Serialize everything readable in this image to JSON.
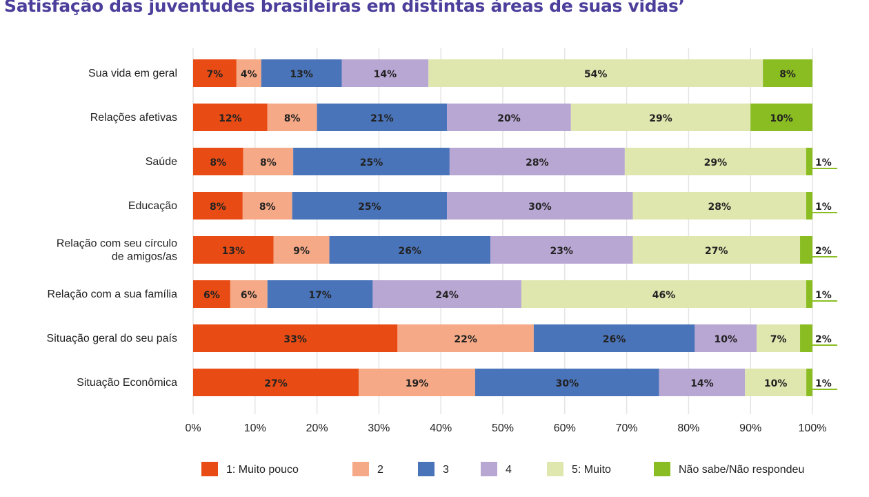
{
  "chart_data": {
    "type": "bar",
    "orientation": "horizontal",
    "stacked": true,
    "title": "Satisfação das juventudes brasileiras em distintas áreas de suas vidas’",
    "categories": [
      "Sua vida em geral",
      "Relações afetivas",
      "Saúde",
      "Educação",
      "Relação com seu círculo de amigos/as",
      "Relação com a sua família",
      "Situação geral do seu país",
      "Situação Econômica"
    ],
    "series": [
      {
        "name": "1: Muito pouco",
        "color": "#e84c14",
        "values": [
          7,
          12,
          8,
          8,
          13,
          6,
          33,
          27
        ]
      },
      {
        "name": "2",
        "color": "#f5a986",
        "values": [
          4,
          8,
          8,
          8,
          9,
          6,
          22,
          19
        ]
      },
      {
        "name": "3",
        "color": "#4a74b9",
        "values": [
          13,
          21,
          25,
          25,
          26,
          17,
          26,
          30
        ]
      },
      {
        "name": "4",
        "color": "#b8a6d3",
        "values": [
          14,
          20,
          28,
          30,
          23,
          24,
          10,
          14
        ]
      },
      {
        "name": "5: Muito",
        "color": "#dfe6ae",
        "values": [
          54,
          29,
          29,
          28,
          27,
          46,
          7,
          10
        ]
      },
      {
        "name": "Não sabe/Não respondeu",
        "color": "#8abd22",
        "values": [
          8,
          10,
          1,
          1,
          2,
          1,
          2,
          1
        ]
      }
    ],
    "xlim": [
      0,
      100
    ],
    "xticks": [
      "0%",
      "10%",
      "20%",
      "30%",
      "40%",
      "50%",
      "60%",
      "70%",
      "80%",
      "90%",
      "100%"
    ],
    "grid": true,
    "legend_position": "bottom"
  }
}
